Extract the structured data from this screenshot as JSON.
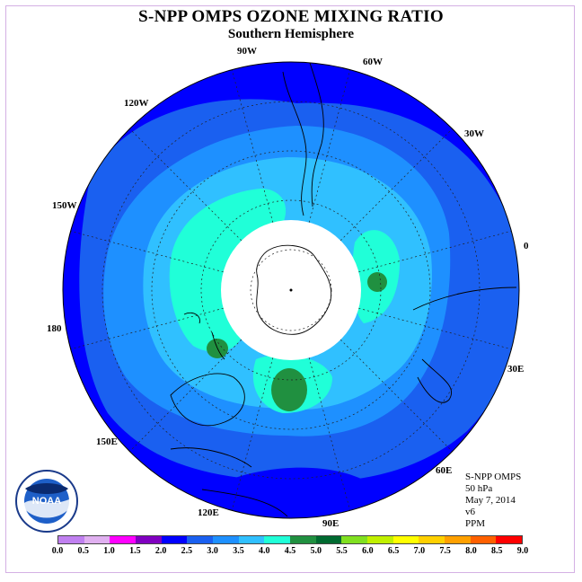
{
  "title": "S-NPP OMPS OZONE MIXING RATIO",
  "subtitle": "Southern Hemisphere",
  "longitude_labels": [
    "90W",
    "60W",
    "30W",
    "0",
    "30E",
    "60E",
    "90E",
    "120E",
    "150E",
    "180",
    "150W",
    "120W"
  ],
  "info": {
    "product": "S-NPP OMPS",
    "level": "50 hPa",
    "date": "May 7, 2014",
    "version": "v6",
    "units": "PPM"
  },
  "colorbar": {
    "ticks": [
      "0.0",
      "0.5",
      "1.0",
      "1.5",
      "2.0",
      "2.5",
      "3.0",
      "3.5",
      "4.0",
      "4.5",
      "5.0",
      "5.5",
      "6.0",
      "6.5",
      "7.0",
      "7.5",
      "8.0",
      "8.5",
      "9.0"
    ],
    "colors": [
      "#c080f0",
      "#e0b0f0",
      "#ff00ff",
      "#8000c0",
      "#0000ff",
      "#1a60f0",
      "#1e90ff",
      "#30c0ff",
      "#20ffd8",
      "#209040",
      "#006a30",
      "#80e020",
      "#c0f000",
      "#ffff00",
      "#ffd000",
      "#ffa000",
      "#ff6000",
      "#ff0000",
      "#905030"
    ]
  },
  "logo_text": "NOAA",
  "colors": {
    "outer_blue": "#0000ff",
    "mid_blue": "#1a60f0",
    "light_blue": "#1e90ff",
    "sky_blue": "#30c0ff",
    "aqua": "#20ffd8",
    "green": "#209040"
  }
}
